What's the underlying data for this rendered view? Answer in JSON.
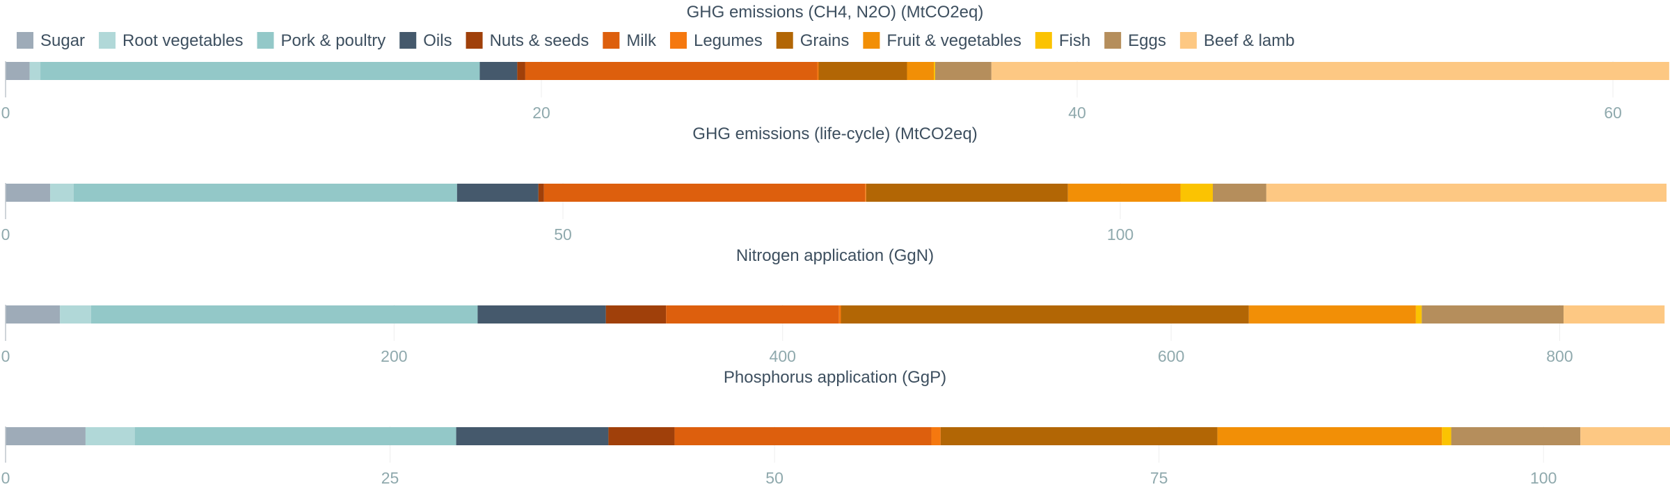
{
  "legend": {
    "items": [
      {
        "label": "Sugar",
        "color": "#9eabb8"
      },
      {
        "label": "Root vegetables",
        "color": "#b1d8d8"
      },
      {
        "label": "Pork & poultry",
        "color": "#93c8c8"
      },
      {
        "label": "Oils",
        "color": "#45596c"
      },
      {
        "label": "Nuts & seeds",
        "color": "#a0400a"
      },
      {
        "label": "Milk",
        "color": "#dd5f0d"
      },
      {
        "label": "Legumes",
        "color": "#f5780f"
      },
      {
        "label": "Grains",
        "color": "#b26605"
      },
      {
        "label": "Fruit & vegetables",
        "color": "#f28f06"
      },
      {
        "label": "Fish",
        "color": "#fbc302"
      },
      {
        "label": "Eggs",
        "color": "#b58e5c"
      },
      {
        "label": "Beef & lamb",
        "color": "#fdc883"
      }
    ]
  },
  "chart_data": [
    {
      "type": "bar",
      "orientation": "horizontal",
      "stacked": true,
      "title": "GHG emissions (CH4, N2O) (MtCO2eq)",
      "xlim": [
        0,
        62
      ],
      "xticks": [
        0,
        20,
        40,
        60
      ],
      "xtick_labels": [
        "0",
        "20",
        "40",
        "60"
      ],
      "grid": true,
      "categories": [
        "Sugar",
        "Root vegetables",
        "Pork & poultry",
        "Oils",
        "Nuts & seeds",
        "Milk",
        "Legumes",
        "Grains",
        "Fruit & vegetables",
        "Fish",
        "Eggs",
        "Beef & lamb"
      ],
      "values": [
        0.9,
        0.4,
        16.4,
        1.4,
        0.3,
        10.9,
        0.05,
        3.3,
        1.0,
        0.05,
        2.1,
        25.3
      ]
    },
    {
      "type": "bar",
      "orientation": "horizontal",
      "stacked": true,
      "title": "GHG emissions (life-cycle) (MtCO2eq)",
      "xlim": [
        0,
        149
      ],
      "xticks": [
        0,
        50,
        100
      ],
      "xtick_labels": [
        "0",
        "50",
        "100"
      ],
      "grid": true,
      "categories": [
        "Sugar",
        "Root vegetables",
        "Pork & poultry",
        "Oils",
        "Nuts & seeds",
        "Milk",
        "Legumes",
        "Grains",
        "Fruit & vegetables",
        "Fish",
        "Eggs",
        "Beef & lamb"
      ],
      "values": [
        4.0,
        2.1,
        34.4,
        7.3,
        0.5,
        28.8,
        0.1,
        18.1,
        10.1,
        2.9,
        4.8,
        35.9
      ]
    },
    {
      "type": "bar",
      "orientation": "horizontal",
      "stacked": true,
      "title": "Nitrogen application (GgN)",
      "xlim": [
        0,
        855
      ],
      "xticks": [
        0,
        200,
        400,
        600,
        800
      ],
      "xtick_labels": [
        "0",
        "200",
        "400",
        "600",
        "800"
      ],
      "grid": true,
      "categories": [
        "Sugar",
        "Root vegetables",
        "Pork & poultry",
        "Oils",
        "Nuts & seeds",
        "Milk",
        "Legumes",
        "Grains",
        "Fruit & vegetables",
        "Fish",
        "Eggs",
        "Beef & lamb"
      ],
      "values": [
        28,
        16,
        199,
        66,
        31,
        89,
        1,
        210,
        86,
        3,
        73,
        52
      ]
    },
    {
      "type": "bar",
      "orientation": "horizontal",
      "stacked": true,
      "title": "Phosphorus application (GgP)",
      "xlim": [
        0,
        108
      ],
      "xticks": [
        0,
        25,
        50,
        75,
        100
      ],
      "xtick_labels": [
        "0",
        "25",
        "50",
        "75",
        "100"
      ],
      "grid": true,
      "categories": [
        "Sugar",
        "Root vegetables",
        "Pork & poultry",
        "Oils",
        "Nuts & seeds",
        "Milk",
        "Legumes",
        "Grains",
        "Fruit & vegetables",
        "Fish",
        "Eggs",
        "Beef & lamb"
      ],
      "values": [
        5.2,
        3.2,
        20.9,
        9.9,
        4.3,
        16.7,
        0.6,
        18.0,
        14.6,
        0.6,
        8.4,
        5.9
      ]
    }
  ]
}
